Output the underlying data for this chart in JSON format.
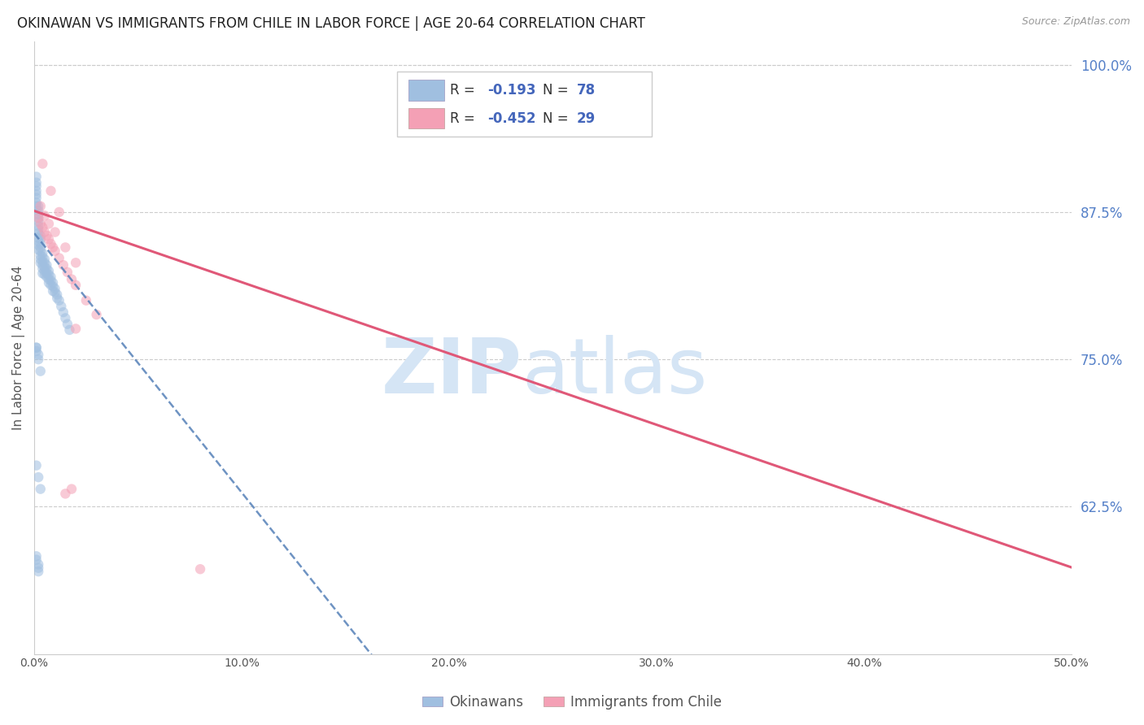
{
  "title": "OKINAWAN VS IMMIGRANTS FROM CHILE IN LABOR FORCE | AGE 20-64 CORRELATION CHART",
  "source": "Source: ZipAtlas.com",
  "ylabel": "In Labor Force | Age 20-64",
  "xlim": [
    0.0,
    0.5
  ],
  "ylim": [
    0.5,
    1.02
  ],
  "xticks": [
    0.0,
    0.1,
    0.2,
    0.3,
    0.4,
    0.5
  ],
  "xticklabels": [
    "0.0%",
    "10.0%",
    "20.0%",
    "30.0%",
    "40.0%",
    "50.0%"
  ],
  "yticks_right": [
    0.625,
    0.75,
    0.875,
    1.0
  ],
  "ytick_right_labels": [
    "62.5%",
    "75.0%",
    "87.5%",
    "100.0%"
  ],
  "okinawan_x": [
    0.001,
    0.001,
    0.001,
    0.001,
    0.001,
    0.001,
    0.001,
    0.001,
    0.002,
    0.002,
    0.002,
    0.002,
    0.002,
    0.002,
    0.002,
    0.002,
    0.002,
    0.002,
    0.002,
    0.002,
    0.003,
    0.003,
    0.003,
    0.003,
    0.003,
    0.003,
    0.003,
    0.003,
    0.004,
    0.004,
    0.004,
    0.004,
    0.004,
    0.004,
    0.005,
    0.005,
    0.005,
    0.005,
    0.005,
    0.006,
    0.006,
    0.006,
    0.006,
    0.007,
    0.007,
    0.007,
    0.007,
    0.008,
    0.008,
    0.008,
    0.009,
    0.009,
    0.009,
    0.01,
    0.01,
    0.011,
    0.011,
    0.012,
    0.013,
    0.014,
    0.015,
    0.016,
    0.017,
    0.001,
    0.002,
    0.003,
    0.001,
    0.002,
    0.003,
    0.001,
    0.001,
    0.002,
    0.002,
    0.002,
    0.001,
    0.001,
    0.002
  ],
  "okinawan_y": [
    0.905,
    0.9,
    0.897,
    0.893,
    0.89,
    0.887,
    0.883,
    0.88,
    0.88,
    0.876,
    0.873,
    0.87,
    0.867,
    0.863,
    0.86,
    0.857,
    0.853,
    0.85,
    0.847,
    0.843,
    0.855,
    0.852,
    0.848,
    0.845,
    0.842,
    0.838,
    0.835,
    0.832,
    0.84,
    0.837,
    0.833,
    0.83,
    0.827,
    0.823,
    0.835,
    0.832,
    0.828,
    0.825,
    0.822,
    0.83,
    0.827,
    0.823,
    0.82,
    0.825,
    0.822,
    0.818,
    0.815,
    0.82,
    0.817,
    0.813,
    0.815,
    0.812,
    0.808,
    0.81,
    0.807,
    0.805,
    0.802,
    0.8,
    0.795,
    0.79,
    0.785,
    0.78,
    0.775,
    0.66,
    0.65,
    0.64,
    0.76,
    0.75,
    0.74,
    0.583,
    0.58,
    0.576,
    0.573,
    0.57,
    0.76,
    0.757,
    0.754
  ],
  "chile_x": [
    0.002,
    0.003,
    0.004,
    0.005,
    0.006,
    0.007,
    0.008,
    0.009,
    0.01,
    0.012,
    0.014,
    0.016,
    0.018,
    0.02,
    0.025,
    0.03,
    0.003,
    0.005,
    0.007,
    0.01,
    0.015,
    0.02,
    0.004,
    0.008,
    0.012,
    0.08,
    0.02,
    0.015,
    0.018
  ],
  "chile_y": [
    0.87,
    0.865,
    0.862,
    0.858,
    0.855,
    0.852,
    0.848,
    0.845,
    0.842,
    0.836,
    0.83,
    0.824,
    0.818,
    0.813,
    0.8,
    0.788,
    0.88,
    0.872,
    0.865,
    0.858,
    0.845,
    0.832,
    0.916,
    0.893,
    0.875,
    0.572,
    0.776,
    0.636,
    0.64
  ],
  "okinawan_color": "#a0bfe0",
  "chile_color": "#f4a0b5",
  "ok_trend_intercept": 0.857,
  "ok_trend_slope": -2.2,
  "ch_trend_intercept": 0.876,
  "ch_trend_slope": -0.605,
  "okinawan_trend_color": "#5580b8",
  "chile_trend_color": "#e05878",
  "right_axis_color": "#5580c8",
  "legend_text_color": "#4466bb",
  "background_color": "#ffffff",
  "grid_color": "#cccccc",
  "title_fontsize": 12,
  "axis_label_fontsize": 11,
  "tick_fontsize": 10,
  "legend_fontsize": 12,
  "watermark_color": "#d5e5f5",
  "scatter_alpha": 0.55,
  "scatter_size": 80
}
